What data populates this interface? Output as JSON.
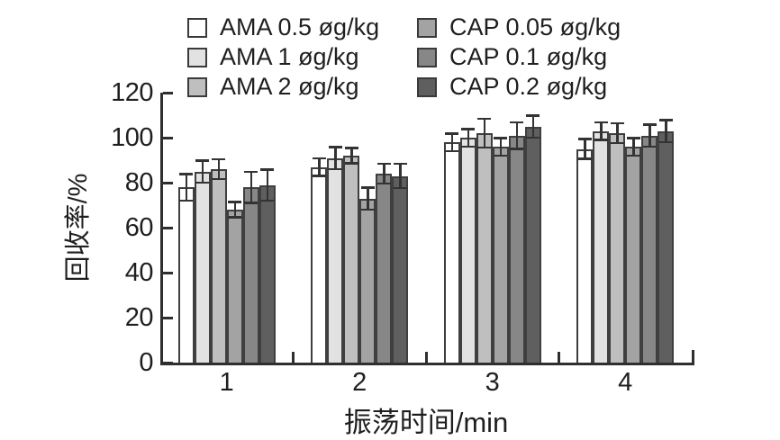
{
  "chart_data": {
    "type": "bar",
    "title": "",
    "xlabel": "振荡时间/min",
    "ylabel": "回收率/%",
    "categories": [
      "1",
      "2",
      "3",
      "4"
    ],
    "yticks": [
      0,
      20,
      40,
      60,
      80,
      100,
      120
    ],
    "ylim": [
      0,
      120
    ],
    "grid": false,
    "legend_position": "top",
    "error_bars": true,
    "series": [
      {
        "name": "AMA 0.5 øg/kg",
        "color": "#ffffff",
        "values": [
          78,
          87,
          98,
          95
        ],
        "errors": [
          6,
          4,
          4,
          4.5
        ]
      },
      {
        "name": "AMA 1 øg/kg",
        "color": "#e2e2e2",
        "values": [
          85,
          91,
          100,
          103
        ],
        "errors": [
          5,
          5,
          4,
          4
        ]
      },
      {
        "name": "AMA 2 øg/kg",
        "color": "#bfbfbf",
        "values": [
          86,
          92,
          102,
          102
        ],
        "errors": [
          4.5,
          3.5,
          6.5,
          4.5
        ]
      },
      {
        "name": "CAP 0.05 øg/kg",
        "color": "#a3a3a3",
        "values": [
          68,
          73,
          96,
          96
        ],
        "errors": [
          3.5,
          5,
          4,
          4
        ]
      },
      {
        "name": "CAP 0.1 øg/kg",
        "color": "#878787",
        "values": [
          78,
          84,
          101,
          101
        ],
        "errors": [
          7,
          4.5,
          6,
          5
        ]
      },
      {
        "name": "CAP 0.2 øg/kg",
        "color": "#5f5f5f",
        "values": [
          79,
          83,
          105,
          103
        ],
        "errors": [
          7,
          5.5,
          5,
          5
        ]
      }
    ],
    "colors": {
      "axis": "#2f2f2f",
      "bar_border": "#3f3f3f",
      "error_bar": "#333333",
      "text": "#1f1f1f",
      "background": "#ffffff"
    }
  }
}
